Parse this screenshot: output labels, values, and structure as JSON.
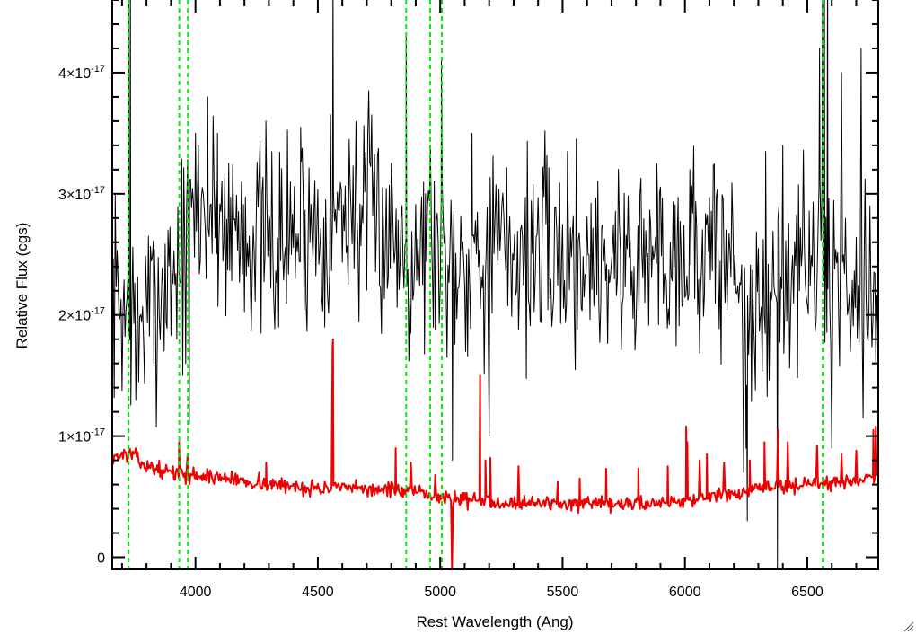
{
  "chart_data": {
    "type": "line",
    "xlabel": "Rest Wavelength (Ang)",
    "ylabel": "Relative Flux (cgs)",
    "xlim": [
      3660,
      6790
    ],
    "ylim": [
      -1e-18,
      4.6e-17
    ],
    "x_ticks": [
      {
        "value": 4000,
        "label": "4000"
      },
      {
        "value": 4500,
        "label": "4500"
      },
      {
        "value": 5000,
        "label": "5000"
      },
      {
        "value": 5500,
        "label": "5500"
      },
      {
        "value": 6000,
        "label": "6000"
      },
      {
        "value": 6500,
        "label": "6500"
      }
    ],
    "y_ticks": [
      {
        "value": 0,
        "mantissa": "0",
        "exponent": ""
      },
      {
        "value": 1e-17,
        "mantissa": "1×10",
        "exponent": "-17"
      },
      {
        "value": 2e-17,
        "mantissa": "2×10",
        "exponent": "-17"
      },
      {
        "value": 3e-17,
        "mantissa": "3×10",
        "exponent": "-17"
      },
      {
        "value": 4e-17,
        "mantissa": "4×10",
        "exponent": "-17"
      }
    ],
    "x_minor_step": 100,
    "y_minor_step": 2e-18,
    "vertical_lines": {
      "color": "#00ee00",
      "style": "dashed",
      "x": [
        3727,
        3934,
        3969,
        4861,
        4959,
        5007,
        6563
      ]
    },
    "series": [
      {
        "color": "#000000",
        "width": 1,
        "x_start": 3660,
        "x_step": 4,
        "anchors": [
          [
            3660,
            2.2
          ],
          [
            3720,
            2.0
          ],
          [
            3800,
            2.0
          ],
          [
            3880,
            2.3
          ],
          [
            3950,
            2.5
          ],
          [
            4000,
            2.9
          ],
          [
            4100,
            2.8
          ],
          [
            4300,
            2.6
          ],
          [
            4500,
            2.75
          ],
          [
            4700,
            2.85
          ],
          [
            4850,
            2.6
          ],
          [
            4950,
            2.6
          ],
          [
            5050,
            2.5
          ],
          [
            5200,
            2.55
          ],
          [
            5500,
            2.5
          ],
          [
            5800,
            2.45
          ],
          [
            6000,
            2.55
          ],
          [
            6200,
            2.45
          ],
          [
            6280,
            1.85
          ],
          [
            6350,
            2.1
          ],
          [
            6450,
            2.4
          ],
          [
            6550,
            2.4
          ],
          [
            6650,
            2.3
          ],
          [
            6790,
            2.3
          ]
        ],
        "noise_amplitude": 0.42,
        "seed": 7,
        "spikes": [
          [
            3727,
            5.0
          ],
          [
            3734,
            4.8
          ],
          [
            3756,
            1.3
          ],
          [
            3768,
            1.45
          ],
          [
            3830,
            1.6
          ],
          [
            3960,
            1.6
          ],
          [
            3975,
            1.1
          ],
          [
            4000,
            3.5
          ],
          [
            4050,
            3.8
          ],
          [
            4090,
            3.5
          ],
          [
            4340,
            1.9
          ],
          [
            4430,
            3.55
          ],
          [
            4562,
            4.8
          ],
          [
            4628,
            3.45
          ],
          [
            4861,
            4.3
          ],
          [
            4880,
            1.85
          ],
          [
            4960,
            3.4
          ],
          [
            5005,
            4.1
          ],
          [
            5050,
            0.8
          ],
          [
            5130,
            3.5
          ],
          [
            5200,
            1.0
          ],
          [
            5215,
            3.2
          ],
          [
            5520,
            3.35
          ],
          [
            5885,
            3.25
          ],
          [
            6020,
            3.2
          ],
          [
            6240,
            0.7
          ],
          [
            6250,
            0.9
          ],
          [
            6255,
            0.3
          ],
          [
            6330,
            3.35
          ],
          [
            6378,
            -0.1
          ],
          [
            6400,
            3.4
          ],
          [
            6550,
            4.2
          ],
          [
            6563,
            5.5
          ],
          [
            6570,
            5.0
          ],
          [
            6583,
            5.3
          ],
          [
            6600,
            0.9
          ],
          [
            6640,
            4.0
          ],
          [
            6720,
            4.2
          ],
          [
            6790,
            2.0
          ]
        ]
      },
      {
        "color": "#ee0000",
        "width": 2,
        "x_start": 3660,
        "x_step": 4,
        "anchors": [
          [
            3660,
            0.83
          ],
          [
            3740,
            0.85
          ],
          [
            3800,
            0.75
          ],
          [
            3900,
            0.7
          ],
          [
            3960,
            0.68
          ],
          [
            4100,
            0.66
          ],
          [
            4300,
            0.6
          ],
          [
            4500,
            0.57
          ],
          [
            4800,
            0.56
          ],
          [
            5000,
            0.5
          ],
          [
            5200,
            0.46
          ],
          [
            5400,
            0.45
          ],
          [
            5600,
            0.43
          ],
          [
            5800,
            0.44
          ],
          [
            6000,
            0.47
          ],
          [
            6200,
            0.52
          ],
          [
            6350,
            0.58
          ],
          [
            6500,
            0.6
          ],
          [
            6650,
            0.62
          ],
          [
            6790,
            0.68
          ]
        ],
        "noise_amplitude": 0.03,
        "seed": 13,
        "spikes": [
          [
            3933,
            0.95
          ],
          [
            3968,
            0.85
          ],
          [
            4260,
            0.7
          ],
          [
            4289,
            0.78
          ],
          [
            4562,
            1.8
          ],
          [
            4560,
            1.72
          ],
          [
            4818,
            0.9
          ],
          [
            4880,
            0.78
          ],
          [
            4980,
            0.68
          ],
          [
            5048,
            -0.1
          ],
          [
            5052,
            0.42
          ],
          [
            5163,
            1.5
          ],
          [
            5185,
            0.8
          ],
          [
            5205,
            0.82
          ],
          [
            5320,
            0.75
          ],
          [
            5480,
            0.62
          ],
          [
            5570,
            0.65
          ],
          [
            5678,
            0.73
          ],
          [
            5810,
            0.73
          ],
          [
            5930,
            0.75
          ],
          [
            6005,
            1.08
          ],
          [
            6010,
            0.95
          ],
          [
            6060,
            0.8
          ],
          [
            6090,
            0.85
          ],
          [
            6160,
            0.78
          ],
          [
            6265,
            0.8
          ],
          [
            6325,
            0.95
          ],
          [
            6380,
            1.05
          ],
          [
            6420,
            0.95
          ],
          [
            6540,
            0.92
          ],
          [
            6640,
            0.85
          ],
          [
            6700,
            0.88
          ],
          [
            6770,
            1.05
          ],
          [
            6780,
            1.08
          ]
        ]
      }
    ]
  }
}
